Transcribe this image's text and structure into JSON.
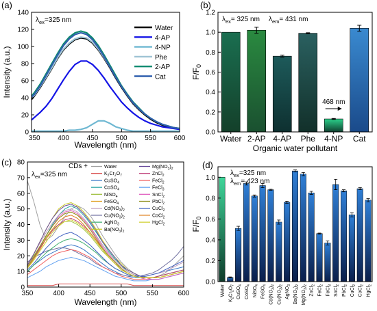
{
  "chart_data": [
    {
      "panel": "(a)",
      "type": "line",
      "annotation": "λex=325 nm",
      "xlabel": "Wavelength (nm)",
      "ylabel": "Intensity (a.u.)",
      "xlim": [
        345,
        600
      ],
      "ylim": [
        0,
        140
      ],
      "xticks": [
        "350",
        "400",
        "450",
        "500",
        "550",
        "600"
      ],
      "yticks": [
        "0",
        "20",
        "40",
        "60",
        "80",
        "100",
        "120",
        "140"
      ],
      "x": [
        345,
        350,
        360,
        370,
        380,
        390,
        400,
        410,
        420,
        430,
        440,
        450,
        460,
        470,
        480,
        490,
        500,
        510,
        520,
        530,
        540,
        550,
        560,
        570,
        580,
        590,
        600
      ],
      "legend_position": "top-right",
      "series": [
        {
          "name": "Water",
          "color": "#000000",
          "values": [
            38,
            42,
            52,
            63,
            74,
            86,
            96,
            103,
            108,
            110,
            109,
            104,
            96,
            86,
            75,
            63,
            52,
            42,
            33,
            26,
            20,
            15,
            11,
            8,
            6,
            5,
            4
          ]
        },
        {
          "name": "4-AP",
          "color": "#1515e6",
          "values": [
            14,
            17,
            23,
            30,
            39,
            50,
            61,
            71,
            79,
            83,
            83,
            79,
            72,
            63,
            53,
            44,
            35,
            28,
            22,
            17,
            13,
            10,
            8,
            6,
            5,
            4,
            3
          ]
        },
        {
          "name": "4-NP",
          "color": "#6fb8d2",
          "values": [
            1,
            1,
            1,
            1,
            1,
            1,
            1,
            2,
            2,
            3,
            5,
            9,
            13,
            13,
            10,
            6,
            4,
            2,
            1,
            1,
            1,
            1,
            1,
            1,
            1,
            1,
            1
          ]
        },
        {
          "name": "Phe",
          "color": "#9ec3d4",
          "values": [
            40,
            43,
            53,
            64,
            75,
            87,
            97,
            104,
            109,
            111,
            110,
            105,
            97,
            87,
            76,
            64,
            53,
            43,
            34,
            27,
            21,
            16,
            12,
            9,
            7,
            5,
            4
          ]
        },
        {
          "name": "2-AP",
          "color": "#0e8a6f",
          "values": [
            42,
            46,
            56,
            68,
            80,
            92,
            103,
            111,
            116,
            118,
            116,
            110,
            101,
            90,
            78,
            66,
            54,
            44,
            35,
            28,
            21,
            16,
            12,
            9,
            7,
            5,
            4
          ]
        },
        {
          "name": "Cat",
          "color": "#2f5fad",
          "values": [
            41,
            44,
            54,
            66,
            78,
            90,
            101,
            109,
            114,
            116,
            114,
            108,
            99,
            88,
            76,
            64,
            53,
            43,
            34,
            27,
            21,
            16,
            12,
            9,
            7,
            5,
            4
          ]
        }
      ]
    },
    {
      "panel": "(b)",
      "type": "bar",
      "annotations": [
        "λex= 325 nm",
        "λem= 431 nm",
        "468 nm"
      ],
      "xlabel": "Organic water pollutant",
      "ylabel": "F/F0",
      "ylim": [
        0,
        1.2
      ],
      "yticks": [
        "0.0",
        "0.2",
        "0.4",
        "0.6",
        "0.8",
        "1.0",
        "1.2"
      ],
      "categories": [
        "Water",
        "2-AP",
        "4-AP",
        "Phe",
        "4-NP",
        "Cat"
      ],
      "values": [
        1.0,
        1.02,
        0.76,
        0.99,
        0.13,
        1.04
      ],
      "errors": [
        0.0,
        0.03,
        0.01,
        0.005,
        0.005,
        0.03
      ]
    },
    {
      "panel": "(c)",
      "type": "line",
      "annotation": "λ ex=325 nm",
      "legend_title": "CDs +",
      "xlabel": "Wavelength (nm)",
      "ylabel": "Intensity (a.u.)",
      "xlim": [
        350,
        600
      ],
      "ylim": [
        0,
        80
      ],
      "xticks": [
        "350",
        "400",
        "450",
        "500",
        "550",
        "600"
      ],
      "yticks": [
        "0",
        "10",
        "20",
        "30",
        "40",
        "50",
        "60",
        "70",
        "80"
      ],
      "x": [
        350,
        360,
        370,
        380,
        390,
        400,
        410,
        420,
        430,
        440,
        450,
        460,
        470,
        480,
        490,
        500,
        510,
        520,
        530,
        540,
        550,
        560,
        570,
        580,
        590,
        600
      ],
      "series": [
        {
          "name": "Water",
          "color": "#a0a0a0",
          "values": [
            68,
            55,
            40,
            30,
            33,
            39,
            45,
            50,
            52,
            50,
            46,
            40,
            33,
            27,
            21,
            16,
            12,
            9,
            7,
            6,
            6,
            7,
            9,
            12,
            16,
            20
          ]
        },
        {
          "name": "K2Cr2O7",
          "color": "#d94a4a",
          "values": [
            1,
            1,
            1,
            1,
            1,
            2,
            2,
            2,
            2,
            2,
            2,
            2,
            2,
            2,
            2,
            2,
            2,
            1,
            1,
            1,
            1,
            1,
            1,
            1,
            1,
            1
          ]
        },
        {
          "name": "CuSO4",
          "color": "#3a78c8",
          "values": [
            10,
            14,
            17,
            20,
            22,
            24,
            26,
            27,
            26,
            24,
            21,
            18,
            15,
            12,
            10,
            8,
            7,
            6,
            6,
            7,
            8,
            9,
            10,
            11,
            12,
            13
          ]
        },
        {
          "name": "CoSO4",
          "color": "#20a0a0",
          "values": [
            12,
            18,
            25,
            33,
            40,
            46,
            50,
            52,
            50,
            46,
            41,
            35,
            29,
            23,
            18,
            14,
            10,
            8,
            6,
            5,
            5,
            5,
            6,
            7,
            8,
            9
          ]
        },
        {
          "name": "NiSO4",
          "color": "#a0c040",
          "values": [
            14,
            20,
            26,
            32,
            37,
            40,
            42,
            42,
            40,
            37,
            33,
            28,
            23,
            19,
            15,
            12,
            9,
            7,
            6,
            6,
            6,
            7,
            8,
            9,
            10,
            11
          ]
        },
        {
          "name": "FeSO4",
          "color": "#e0a020",
          "values": [
            13,
            19,
            26,
            33,
            39,
            44,
            47,
            48,
            46,
            43,
            38,
            33,
            27,
            22,
            17,
            13,
            10,
            8,
            7,
            6,
            6,
            7,
            8,
            9,
            10,
            11
          ]
        },
        {
          "name": "Cd(NO3)2",
          "color": "#c0a0c0",
          "values": [
            15,
            21,
            28,
            35,
            41,
            46,
            49,
            50,
            48,
            44,
            39,
            33,
            27,
            22,
            17,
            13,
            10,
            8,
            7,
            7,
            8,
            9,
            10,
            12,
            14,
            16
          ]
        },
        {
          "name": "Cu(NO3)2",
          "color": "#7070a0",
          "values": [
            16,
            19,
            21,
            23,
            24,
            25,
            25,
            24,
            22,
            20,
            18,
            15,
            13,
            11,
            9,
            8,
            7,
            7,
            7,
            8,
            9,
            11,
            14,
            17,
            21,
            26
          ]
        },
        {
          "name": "AgNO3",
          "color": "#40b070",
          "values": [
            10,
            14,
            18,
            22,
            25,
            28,
            30,
            31,
            30,
            28,
            25,
            22,
            18,
            15,
            12,
            10,
            8,
            7,
            6,
            6,
            6,
            7,
            8,
            9,
            10,
            11
          ]
        },
        {
          "name": "Ba(NO3)2",
          "color": "#c8c820",
          "values": [
            14,
            21,
            29,
            37,
            44,
            50,
            53,
            54,
            52,
            48,
            43,
            37,
            30,
            24,
            19,
            15,
            11,
            9,
            7,
            6,
            6,
            6,
            7,
            8,
            9,
            10
          ]
        },
        {
          "name": "Mg(NO3)2",
          "color": "#6a4c9c",
          "values": [
            14,
            21,
            29,
            37,
            44,
            49,
            52,
            53,
            51,
            47,
            42,
            36,
            29,
            24,
            19,
            14,
            11,
            9,
            7,
            6,
            6,
            6,
            7,
            8,
            9,
            10
          ]
        },
        {
          "name": "ZnCl2",
          "color": "#c0407a",
          "values": [
            13,
            19,
            25,
            31,
            36,
            40,
            43,
            44,
            42,
            39,
            35,
            30,
            25,
            20,
            16,
            12,
            9,
            7,
            6,
            6,
            6,
            7,
            8,
            9,
            10,
            11
          ]
        },
        {
          "name": "FeCl2",
          "color": "#f06060",
          "values": [
            8,
            11,
            14,
            17,
            20,
            22,
            23,
            24,
            23,
            21,
            19,
            16,
            13,
            11,
            9,
            7,
            6,
            5,
            5,
            5,
            6,
            6,
            7,
            8,
            9,
            10
          ]
        },
        {
          "name": "FeCl3",
          "color": "#60a0f0",
          "values": [
            6,
            8,
            10,
            13,
            15,
            17,
            18,
            19,
            18,
            17,
            15,
            13,
            11,
            9,
            7,
            6,
            5,
            4,
            4,
            4,
            5,
            5,
            6,
            7,
            8,
            9
          ]
        },
        {
          "name": "SnCl2",
          "color": "#e060c0",
          "values": [
            13,
            19,
            26,
            33,
            39,
            45,
            48,
            49,
            47,
            43,
            38,
            32,
            26,
            21,
            16,
            12,
            9,
            7,
            6,
            5,
            5,
            5,
            6,
            7,
            8,
            9
          ]
        },
        {
          "name": "PbCl2",
          "color": "#909020",
          "values": [
            13,
            19,
            26,
            33,
            39,
            44,
            47,
            48,
            46,
            42,
            37,
            31,
            25,
            20,
            16,
            12,
            9,
            7,
            6,
            6,
            6,
            6,
            7,
            8,
            9,
            10
          ]
        },
        {
          "name": "CuCl2",
          "color": "#4060c0",
          "values": [
            11,
            15,
            20,
            25,
            29,
            32,
            34,
            35,
            33,
            30,
            27,
            23,
            19,
            15,
            12,
            10,
            8,
            7,
            7,
            7,
            8,
            9,
            11,
            13,
            15,
            17
          ]
        },
        {
          "name": "CoCl2",
          "color": "#e08020",
          "values": [
            12,
            18,
            24,
            31,
            37,
            42,
            45,
            46,
            44,
            40,
            35,
            30,
            24,
            19,
            15,
            11,
            9,
            7,
            6,
            6,
            6,
            6,
            7,
            8,
            9,
            10
          ]
        },
        {
          "name": "HgCl2",
          "color": "#d0d030",
          "values": [
            12,
            17,
            23,
            29,
            35,
            39,
            42,
            43,
            41,
            38,
            34,
            29,
            24,
            19,
            15,
            11,
            9,
            7,
            6,
            6,
            6,
            6,
            7,
            8,
            9,
            10
          ]
        }
      ]
    },
    {
      "panel": "(d)",
      "type": "bar",
      "annotations": [
        "λex=325 nm",
        "λem= 423 nm"
      ],
      "ylabel": "F/F0",
      "ylim": [
        0,
        1.1
      ],
      "yticks": [
        "0.0",
        "0.2",
        "0.4",
        "0.6",
        "0.8",
        "1.0"
      ],
      "categories": [
        "Water",
        "K2Cr2O7",
        "CuSO4",
        "CoSO4",
        "NiSO4",
        "FeSO4",
        "Cd(NO3)2",
        "Cu(NO3)2",
        "AgNO3",
        "Ba(NO3)2",
        "Mg(NO3)2",
        "ZnCl2",
        "FeCl2",
        "FeCl3",
        "SnCl2",
        "PbCl2",
        "CuCl2",
        "CoCl2",
        "HgCl2"
      ],
      "values": [
        1.0,
        0.04,
        0.51,
        0.94,
        0.82,
        0.92,
        0.88,
        0.57,
        0.76,
        1.06,
        1.03,
        0.85,
        0.46,
        0.37,
        0.93,
        0.87,
        0.64,
        0.89,
        0.78
      ],
      "errors": [
        0.0,
        0.005,
        0.02,
        0.015,
        0.01,
        0.02,
        0.005,
        0.02,
        0.01,
        0.01,
        0.015,
        0.015,
        0.005,
        0.02,
        0.05,
        0.01,
        0.02,
        0.01,
        0.015
      ]
    }
  ]
}
